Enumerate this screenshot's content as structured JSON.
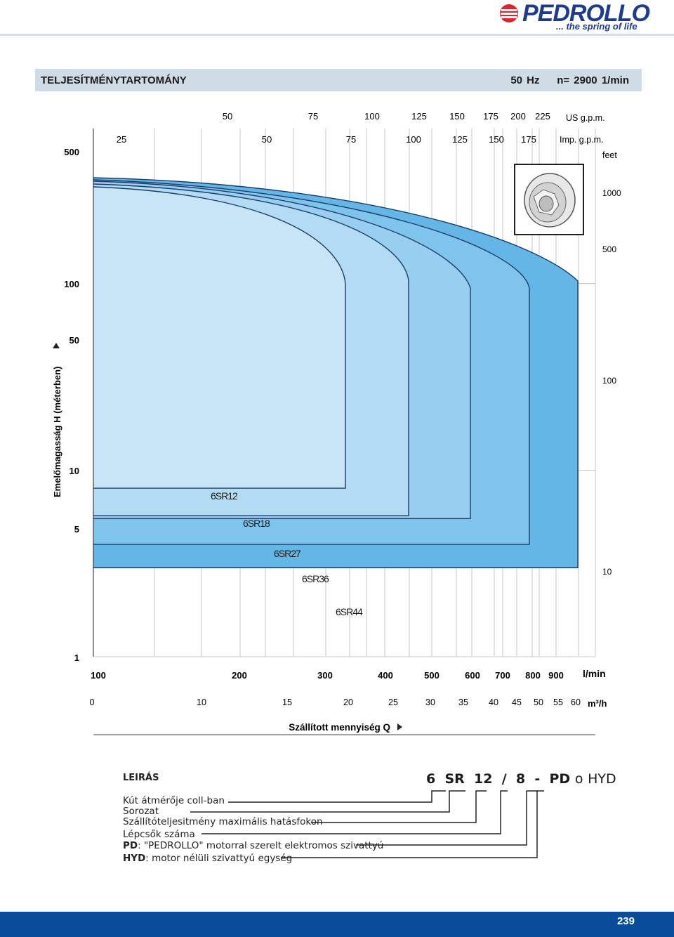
{
  "brand": {
    "name": "PEDROLLO",
    "tagline": "... the spring of life"
  },
  "header": {
    "title": "TELJESÍTMÉNYTARTOMÁNY",
    "freq": "50 Hz",
    "speed": "n= 2900  1/min"
  },
  "colors": {
    "title_bar": "#cfdbe5",
    "footer": "#0a4c9c",
    "curve_stroke": "#1d3c6a",
    "fill_44": "#63b6e6",
    "fill_36": "#7ec4ec",
    "fill_27": "#98cff0",
    "fill_18": "#b3dcf4",
    "fill_12": "#c7e5f7"
  },
  "chart_data": {
    "type": "area",
    "y_axis_label": "Emelőmagasság  H  (méterben)",
    "x_axis_label": "Szállított mennyiség  Q",
    "y_scale": "log",
    "x_scale": "log",
    "ylim": [
      1,
      500
    ],
    "y_ticks": [
      "500",
      "100",
      "50",
      "10",
      "5",
      "1"
    ],
    "y_ticks_right_unit": "feet",
    "y_ticks_right": [
      "1000",
      "500",
      "100",
      "10"
    ],
    "x_unit_lmin": "l/min",
    "x_ticks_lmin": [
      "100",
      "200",
      "300",
      "400",
      "500",
      "600",
      "700",
      "800",
      "900"
    ],
    "x_unit_m3h": "m³/h",
    "x_ticks_m3h": [
      "0",
      "10",
      "15",
      "20",
      "25",
      "30",
      "35",
      "40",
      "45",
      "50",
      "55",
      "60"
    ],
    "x_unit_us": "US g.p.m.",
    "x_ticks_us": [
      "50",
      "75",
      "100",
      "125",
      "150",
      "175",
      "200",
      "225"
    ],
    "x_unit_imp": "Imp. g.p.m.",
    "x_ticks_imp": [
      "25",
      "50",
      "75",
      "100",
      "125",
      "150",
      "175"
    ],
    "series": [
      {
        "name": "6SR44",
        "q_min_lmin": 100,
        "q_max_lmin": 900,
        "h_max_m": 340,
        "h_min_m": 3.0
      },
      {
        "name": "6SR36",
        "q_min_lmin": 100,
        "q_max_lmin": 800,
        "h_max_m": 320,
        "h_min_m": 4.0
      },
      {
        "name": "6SR27",
        "q_min_lmin": 100,
        "q_max_lmin": 700,
        "h_max_m": 300,
        "h_min_m": 5.5
      },
      {
        "name": "6SR18",
        "q_min_lmin": 100,
        "q_max_lmin": 500,
        "h_max_m": 285,
        "h_min_m": 5.7
      },
      {
        "name": "6SR12",
        "q_min_lmin": 100,
        "q_max_lmin": 380,
        "h_max_m": 270,
        "h_min_m": 8.0
      }
    ]
  },
  "legend": {
    "heading": "LEIRÁS",
    "code_6": "6",
    "code_sr": "SR",
    "code_12": "12",
    "code_slash": "/",
    "code_8": "8",
    "code_dash": "-",
    "code_pd": "PD",
    "code_or": "o",
    "code_hyd": "HYD",
    "line1": "Kút átmérője coll-ban",
    "line2": "Sorozat",
    "line3": "Szállítóteljesitmény maximális hatásfokon",
    "line4": "Lépcsők száma",
    "line5_key": "PD",
    "line5_text": ": \"PEDROLLO\" motorral szerelt elektromos szivattyú",
    "line6_key": "HYD",
    "line6_text": ": motor nélüli szivattyú egység"
  },
  "footer": {
    "page": "239"
  }
}
